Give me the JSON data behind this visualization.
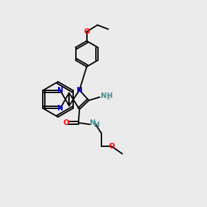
{
  "bg_color": "#ebebeb",
  "bond_color": "#000000",
  "n_color": "#0000cc",
  "o_color": "#ff0000",
  "nh_color": "#4a9090",
  "lw": 1.4,
  "fs": 7.5,
  "fig_size": [
    3.0,
    3.0
  ],
  "dpi": 100,
  "xlim": [
    0,
    10
  ],
  "ylim": [
    0,
    10
  ]
}
